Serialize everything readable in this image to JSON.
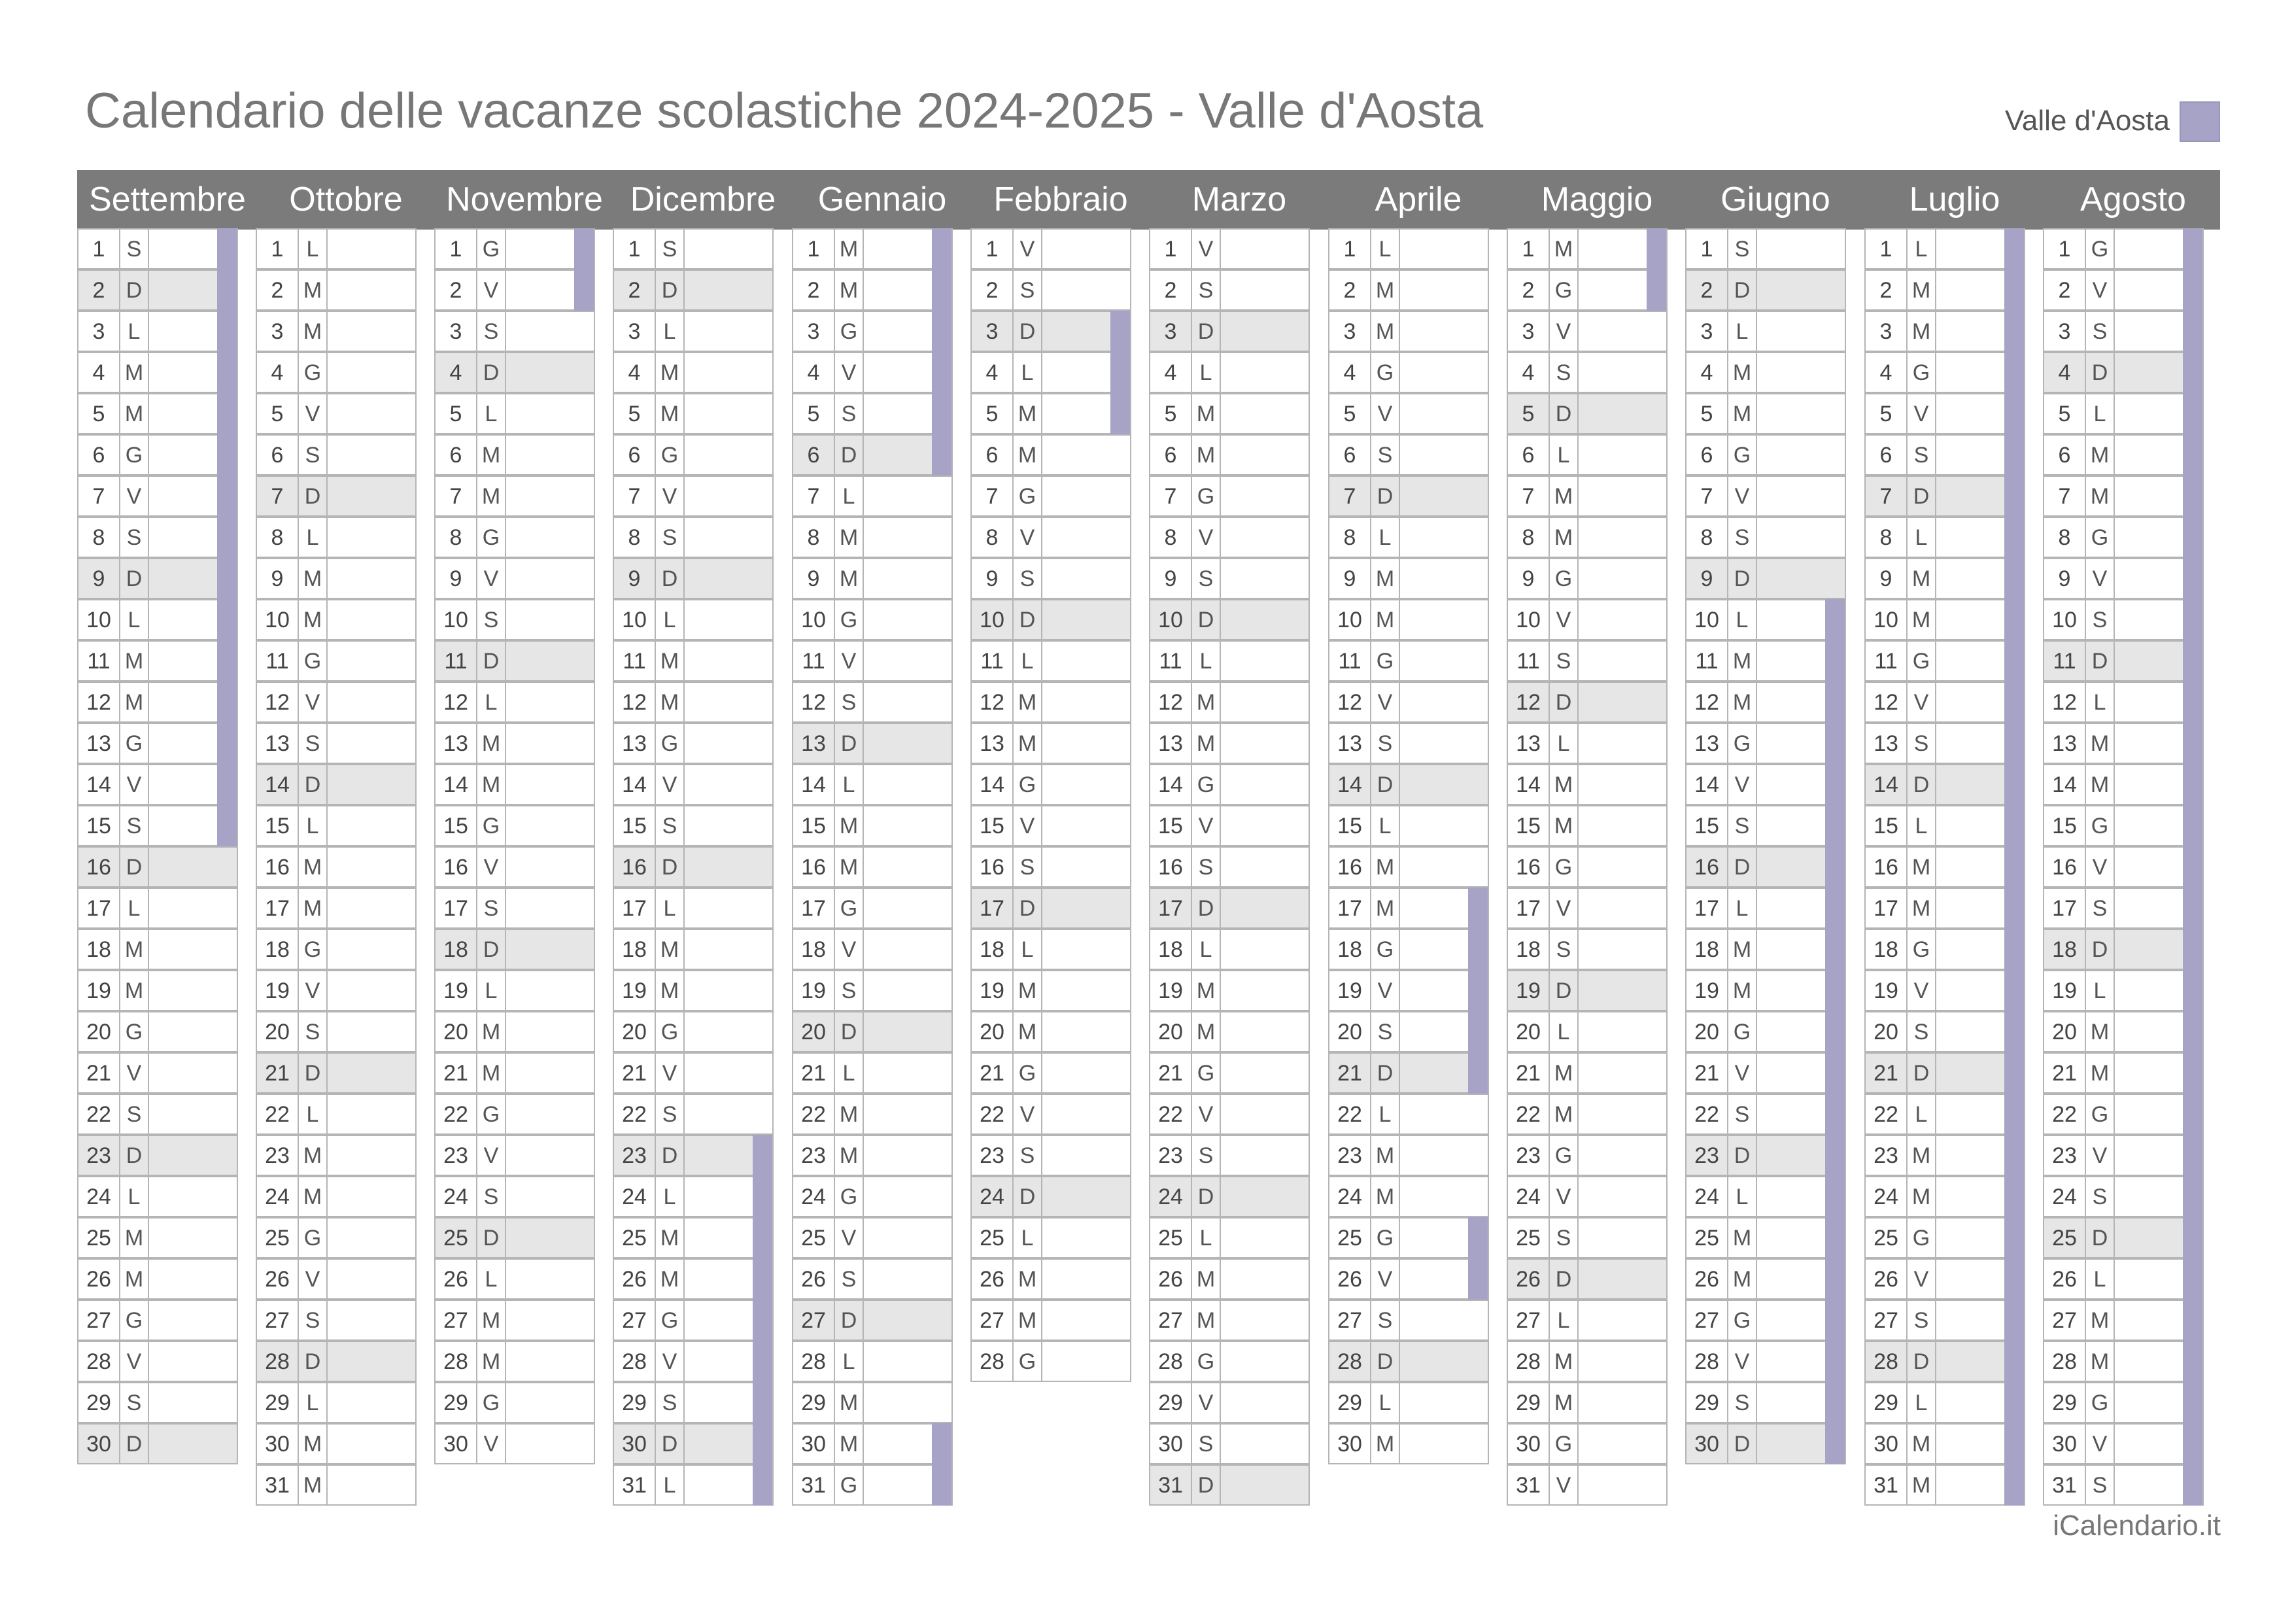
{
  "title": "Calendario delle vacanze scolastiche 2024-2025 - Valle d'Aosta",
  "legend": {
    "label": "Valle d'Aosta",
    "color": "#a7a3c6"
  },
  "credit": "iCalendario.it",
  "colors": {
    "header_bg": "#7b7b7b",
    "sunday_bg": "#e6e6e6",
    "holiday": "#a7a3c6"
  },
  "months": [
    {
      "name": "Settembre",
      "days": 30,
      "first_dow": 6,
      "holidays": [
        [
          1,
          15
        ]
      ]
    },
    {
      "name": "Ottobre",
      "days": 31,
      "first_dow": 1,
      "holidays": []
    },
    {
      "name": "Novembre",
      "days": 30,
      "first_dow": 4,
      "holidays": [
        [
          1,
          2
        ]
      ]
    },
    {
      "name": "Dicembre",
      "days": 31,
      "first_dow": 6,
      "holidays": [
        [
          23,
          31
        ]
      ]
    },
    {
      "name": "Gennaio",
      "days": 31,
      "first_dow": 2,
      "holidays": [
        [
          1,
          6
        ],
        [
          30,
          31
        ]
      ]
    },
    {
      "name": "Febbraio",
      "days": 28,
      "first_dow": 5,
      "holidays": [
        [
          3,
          5
        ]
      ]
    },
    {
      "name": "Marzo",
      "days": 31,
      "first_dow": 5,
      "holidays": []
    },
    {
      "name": "Aprile",
      "days": 30,
      "first_dow": 1,
      "holidays": [
        [
          17,
          21
        ],
        [
          25,
          26
        ]
      ]
    },
    {
      "name": "Maggio",
      "days": 31,
      "first_dow": 3,
      "holidays": [
        [
          1,
          2
        ]
      ]
    },
    {
      "name": "Giugno",
      "days": 30,
      "first_dow": 6,
      "holidays": [
        [
          10,
          30
        ]
      ]
    },
    {
      "name": "Luglio",
      "days": 31,
      "first_dow": 1,
      "holidays": [
        [
          1,
          31
        ]
      ]
    },
    {
      "name": "Agosto",
      "days": 31,
      "first_dow": 4,
      "holidays": [
        [
          1,
          31
        ]
      ]
    }
  ],
  "day_letters": [
    "L",
    "M",
    "M",
    "G",
    "V",
    "S",
    "D"
  ]
}
